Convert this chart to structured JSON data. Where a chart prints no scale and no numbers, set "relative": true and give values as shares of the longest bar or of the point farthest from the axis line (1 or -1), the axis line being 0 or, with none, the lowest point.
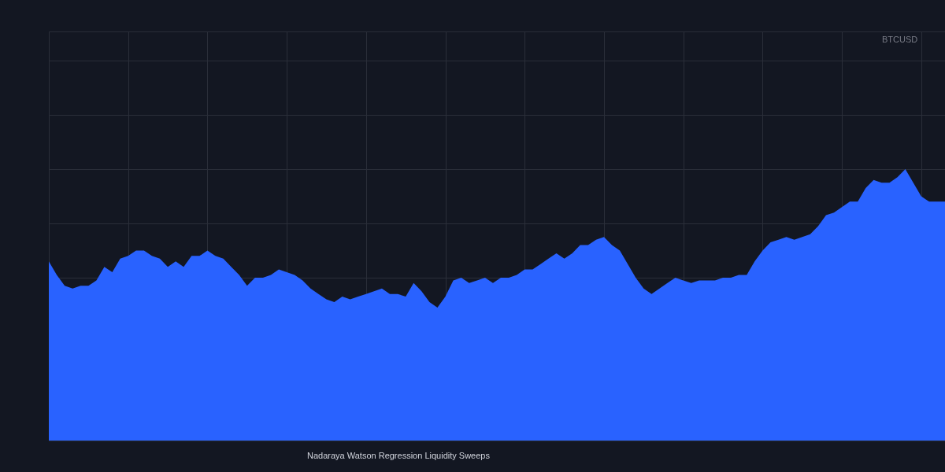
{
  "chart_data": {
    "type": "area",
    "relative": true,
    "grid": true,
    "categories": [
      null,
      null,
      null,
      null,
      null,
      null,
      null,
      null,
      null,
      null,
      null,
      null,
      null,
      null,
      null,
      null,
      null,
      null,
      null,
      null,
      null,
      null,
      null,
      null,
      null,
      null,
      null,
      null,
      null,
      null,
      null,
      null,
      null,
      null,
      null,
      null,
      null,
      null,
      null,
      null,
      null,
      null,
      null,
      null,
      null,
      null,
      null,
      null,
      null,
      null,
      null,
      null,
      null,
      null,
      null,
      null,
      null,
      null,
      null,
      null,
      null,
      null,
      null,
      null,
      null,
      null,
      null,
      null,
      null,
      null,
      null,
      null,
      null,
      null,
      null,
      null,
      null,
      null,
      null,
      null,
      null,
      null,
      null,
      null,
      null,
      null,
      null,
      null,
      null,
      null,
      null,
      null,
      null,
      null,
      null,
      null,
      null,
      null,
      null,
      null,
      null,
      null,
      null,
      null,
      null,
      null,
      null,
      null,
      null,
      null,
      null,
      null,
      null,
      null
    ],
    "series": [
      {
        "color": "#2962ff",
        "values": [
          0.66,
          0.61,
          0.57,
          0.56,
          0.57,
          0.57,
          0.59,
          0.64,
          0.62,
          0.67,
          0.68,
          0.7,
          0.7,
          0.68,
          0.67,
          0.64,
          0.66,
          0.64,
          0.68,
          0.68,
          0.7,
          0.68,
          0.67,
          0.64,
          0.61,
          0.57,
          0.6,
          0.6,
          0.61,
          0.63,
          0.62,
          0.61,
          0.59,
          0.56,
          0.54,
          0.52,
          0.51,
          0.53,
          0.52,
          0.53,
          0.54,
          0.55,
          0.56,
          0.54,
          0.54,
          0.53,
          0.58,
          0.55,
          0.51,
          0.49,
          0.53,
          0.59,
          0.6,
          0.58,
          0.59,
          0.6,
          0.58,
          0.6,
          0.6,
          0.61,
          0.63,
          0.63,
          0.65,
          0.67,
          0.69,
          0.67,
          0.69,
          0.72,
          0.72,
          0.74,
          0.75,
          0.72,
          0.7,
          0.65,
          0.6,
          0.56,
          0.54,
          0.56,
          0.58,
          0.6,
          0.59,
          0.58,
          0.59,
          0.59,
          0.59,
          0.6,
          0.6,
          0.61,
          0.61,
          0.66,
          0.7,
          0.73,
          0.74,
          0.75,
          0.74,
          0.75,
          0.76,
          0.79,
          0.83,
          0.84,
          0.86,
          0.88,
          0.88,
          0.93,
          0.96,
          0.95,
          0.95,
          0.97,
          1.0,
          0.95,
          0.9,
          0.88,
          0.88,
          0.88
        ]
      }
    ],
    "annotations": [
      "BTCUSD",
      "Nadaraya Watson Regression Liquidity Sweeps"
    ]
  }
}
